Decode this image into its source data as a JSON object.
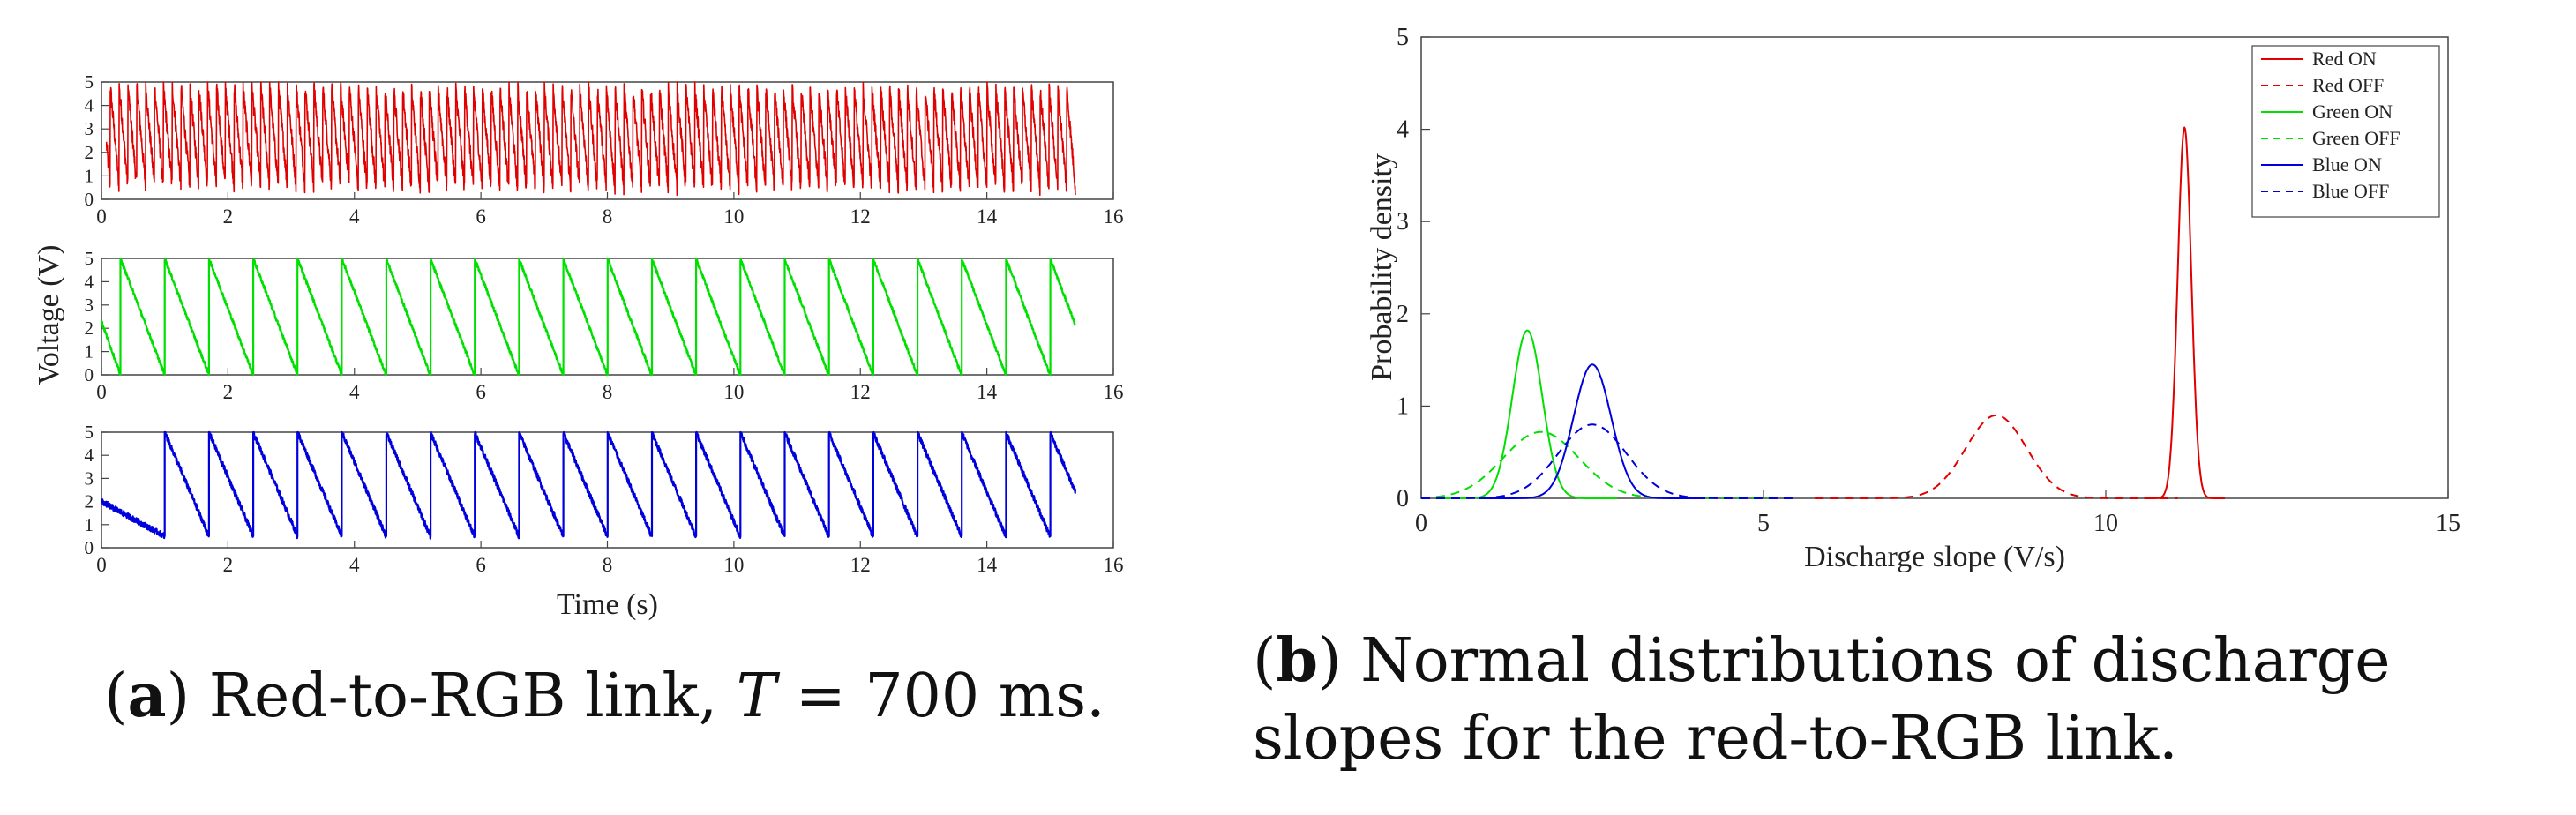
{
  "chart_data": [
    {
      "id": "a",
      "type": "line",
      "layout": "3 stacked panels, shared y label",
      "ylabel": "Voltage (V)",
      "xlabel": "Time (s)",
      "xlim": [
        0,
        16
      ],
      "xticks": [
        0,
        2,
        4,
        6,
        8,
        10,
        12,
        14,
        16
      ],
      "ylim": [
        0,
        5
      ],
      "yticks": [
        0,
        1,
        2,
        3,
        4,
        5
      ],
      "series": [
        {
          "name": "red",
          "color": "#e00000",
          "period_s": 0.14,
          "v_low": 0.5,
          "v_high": 4.8,
          "t_end": 15.4,
          "noise": 0.35
        },
        {
          "name": "green",
          "color": "#00e000",
          "period_s": 0.7,
          "v_low": 0.0,
          "v_high": 5.0,
          "t_end": 15.4,
          "t_first_peak": 0.3,
          "v_start": 2.3,
          "noise": 0.08
        },
        {
          "name": "blue",
          "color": "#0000dd",
          "period_s": 0.7,
          "v_low": 0.5,
          "v_high": 5.0,
          "t_end": 15.4,
          "t_first_peak": 1.0,
          "v_start": 2.0,
          "noise": 0.12
        }
      ]
    },
    {
      "id": "b",
      "type": "line",
      "xlabel": "Discharge slope (V/s)",
      "ylabel": "Probability density",
      "xlim": [
        0,
        15
      ],
      "xticks": [
        0,
        5,
        10,
        15
      ],
      "ylim": [
        0,
        5
      ],
      "yticks": [
        0,
        1,
        2,
        3,
        4,
        5
      ],
      "legend_position": "top-right",
      "series": [
        {
          "name": "Red ON",
          "color": "#e00000",
          "dash": "solid",
          "mean": 11.15,
          "peak": 4.02
        },
        {
          "name": "Red OFF",
          "color": "#e00000",
          "dash": "dashed",
          "mean": 8.4,
          "peak": 0.9
        },
        {
          "name": "Green ON",
          "color": "#00e000",
          "dash": "solid",
          "mean": 1.55,
          "peak": 1.82
        },
        {
          "name": "Green OFF",
          "color": "#00e000",
          "dash": "dashed",
          "mean": 1.75,
          "peak": 0.72
        },
        {
          "name": "Blue ON",
          "color": "#0000dd",
          "dash": "solid",
          "mean": 2.5,
          "peak": 1.45
        },
        {
          "name": "Blue OFF",
          "color": "#0000dd",
          "dash": "dashed",
          "mean": 2.5,
          "peak": 0.8
        }
      ]
    }
  ],
  "captions": {
    "a": {
      "label": "a",
      "text_before": " Red-to-RGB link, ",
      "symbol": "T",
      "text_after": " = 700 ms."
    },
    "b": {
      "label": "b",
      "text": " Normal distributions of discharge slopes for the red-to-RGB link."
    }
  }
}
